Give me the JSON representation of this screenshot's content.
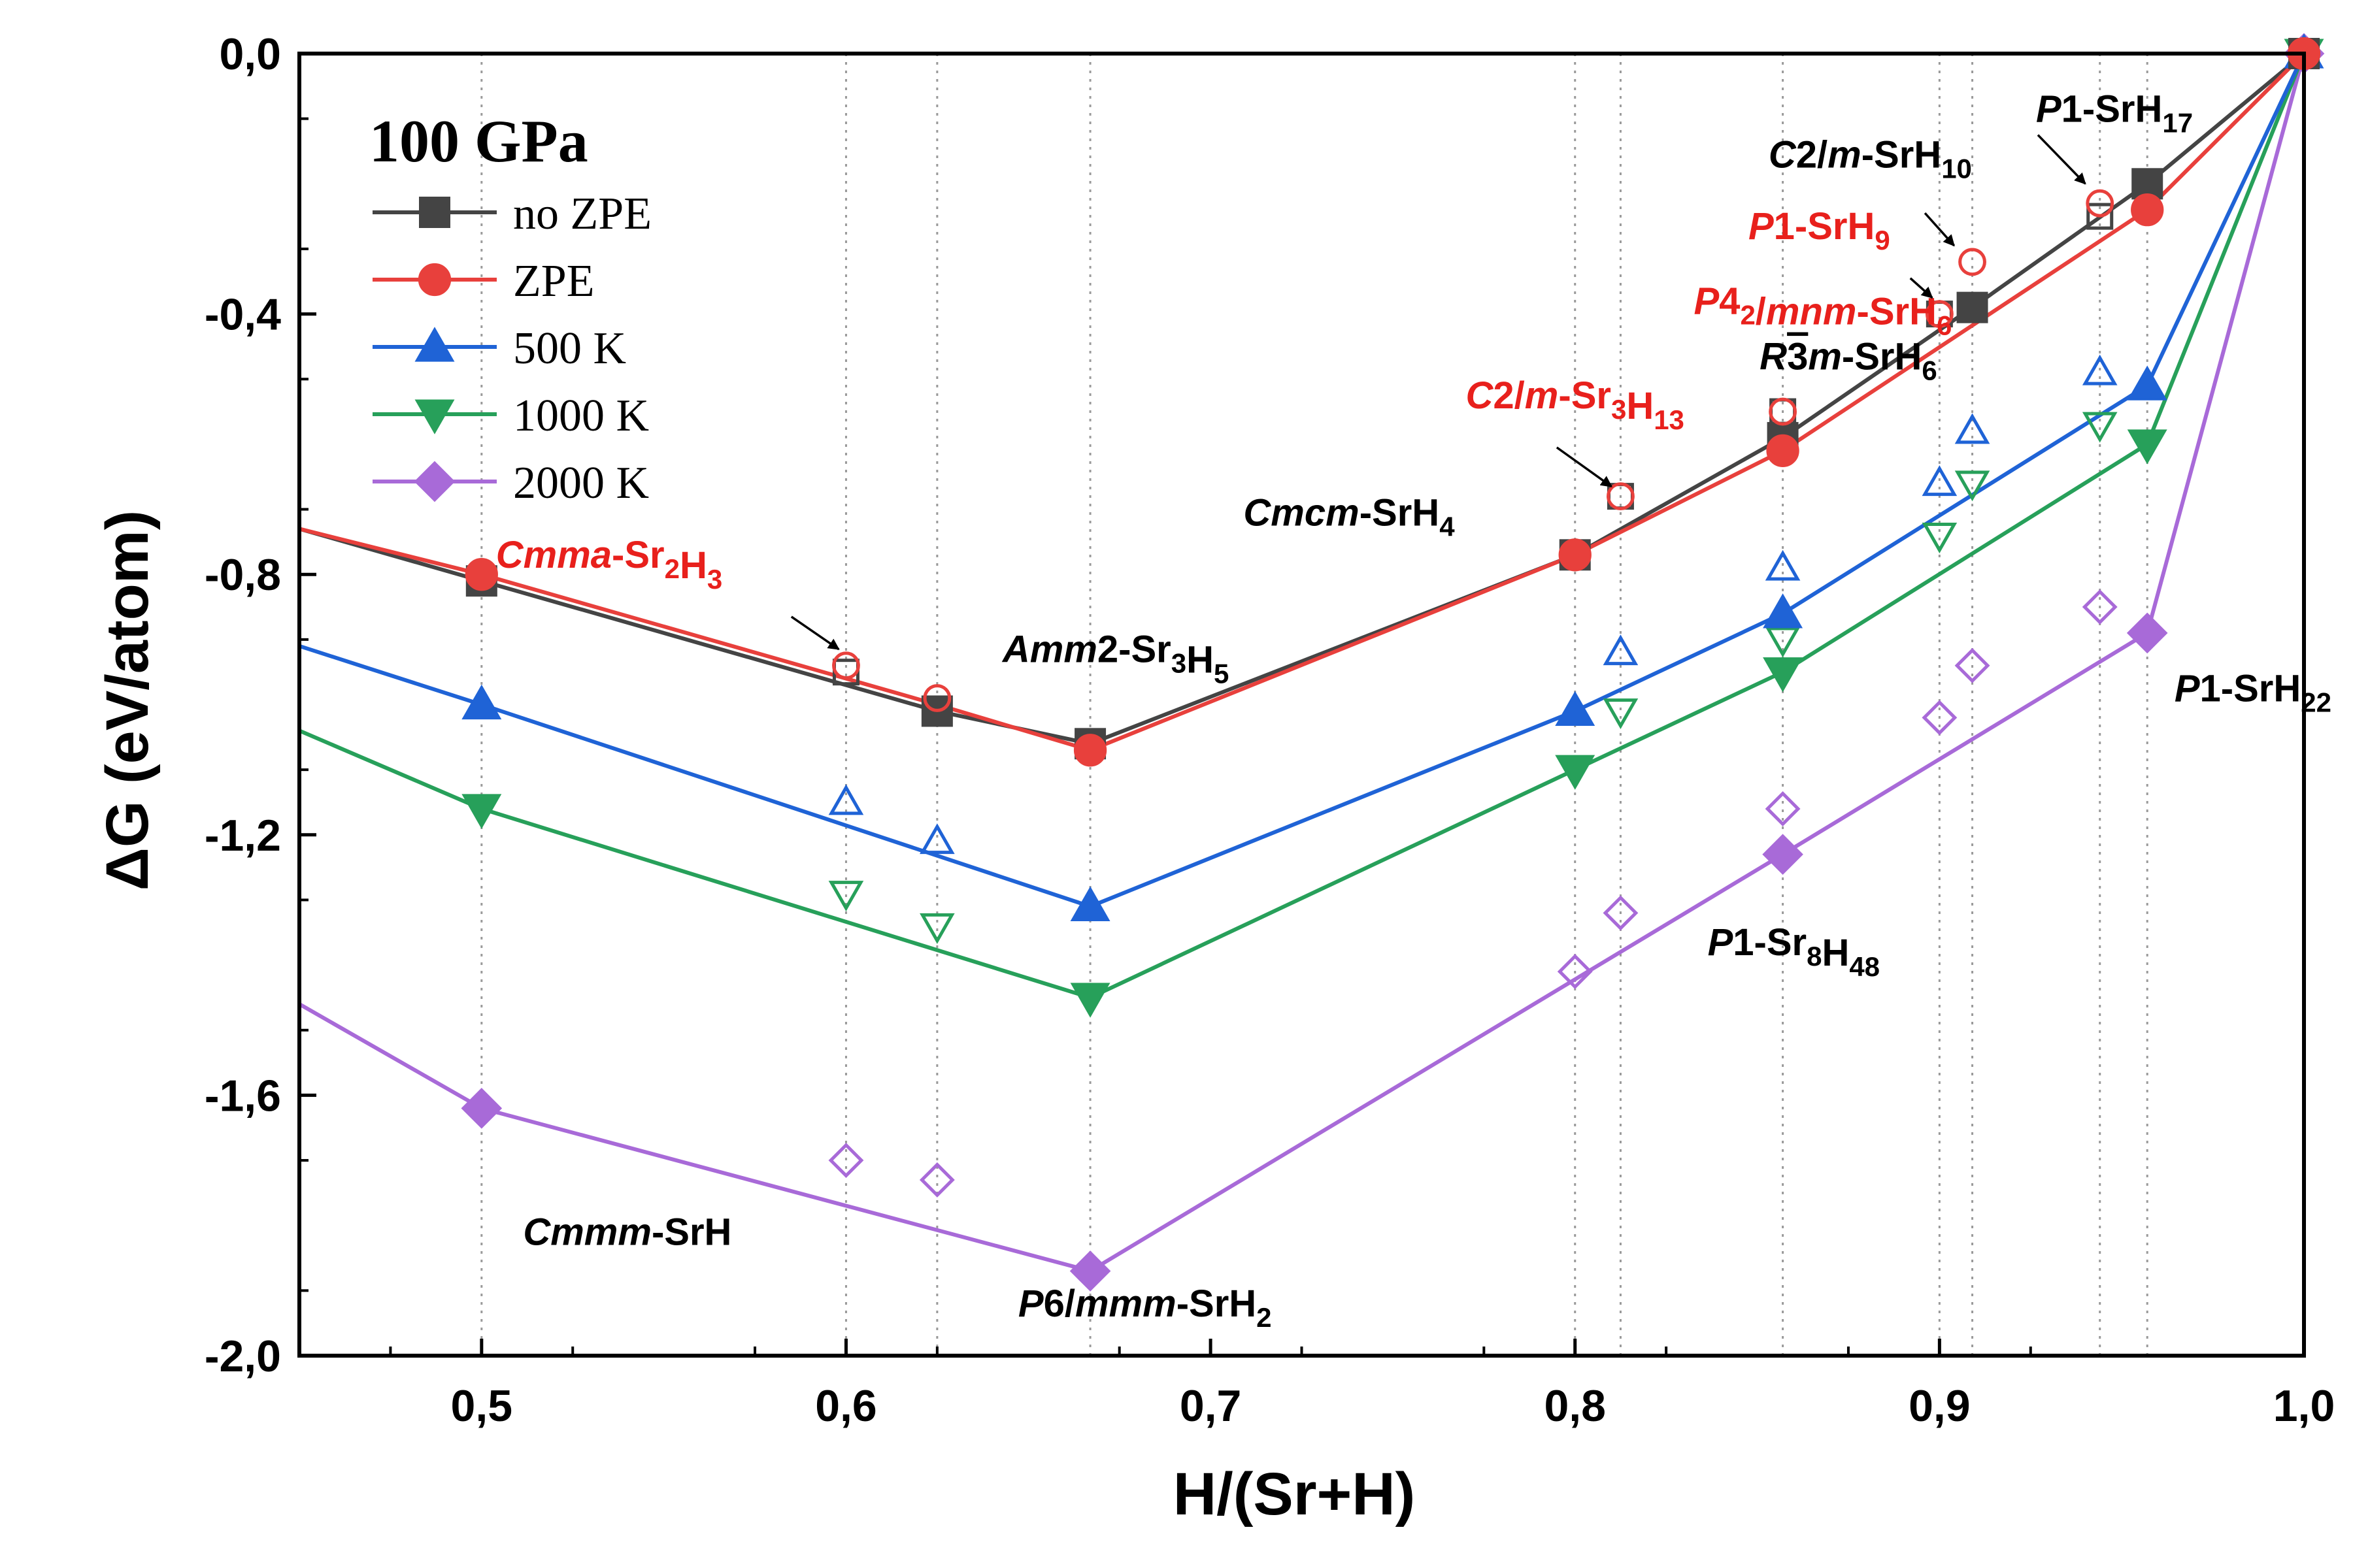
{
  "colors": {
    "no_zpe": "#444444",
    "zpe": "#e8403c",
    "k500": "#1f63d6",
    "k1000": "#27a05a",
    "k2000": "#a86ad8",
    "annotation_red": "#e8201c",
    "annotation_black": "#000000",
    "guide": "#9a9a9a"
  },
  "chart_data": {
    "type": "scatter",
    "xlabel": "H/(Sr+H)",
    "ylabel": "ΔG (eV/atom)",
    "xlim": [
      0.45,
      1.0
    ],
    "ylim": [
      -2.0,
      0.0
    ],
    "x_ticks": [
      0.5,
      0.6,
      0.7,
      0.8,
      0.9,
      1.0
    ],
    "x_tick_labels": [
      "0,5",
      "0,6",
      "0,7",
      "0,8",
      "0,9",
      "1,0"
    ],
    "y_ticks": [
      0.0,
      -0.4,
      -0.8,
      -1.2,
      -1.6,
      -2.0
    ],
    "y_tick_labels": [
      "0,0",
      "-0,4",
      "-0,8",
      "-1,2",
      "-1,6",
      "-2,0"
    ],
    "guide_lines_x": [
      0.5,
      0.6,
      0.625,
      0.667,
      0.8,
      0.8125,
      0.857,
      0.9,
      0.909,
      0.944,
      0.957
    ],
    "legend_title": "100 GPa",
    "legend_position": "top-left",
    "series": [
      {
        "name": "no ZPE",
        "color_key": "no_zpe",
        "marker": "square",
        "hull": [
          [
            0.45,
            -0.73
          ],
          [
            0.5,
            -0.81
          ],
          [
            0.625,
            -1.01
          ],
          [
            0.667,
            -1.06
          ],
          [
            0.8,
            -0.77
          ],
          [
            0.857,
            -0.59
          ],
          [
            0.909,
            -0.39
          ],
          [
            0.957,
            -0.2
          ],
          [
            1.0,
            0.0
          ]
        ],
        "on_hull": [
          [
            0.5,
            -0.81
          ],
          [
            0.625,
            -1.01
          ],
          [
            0.667,
            -1.06
          ],
          [
            0.8,
            -0.77
          ],
          [
            0.857,
            -0.59
          ],
          [
            0.909,
            -0.39
          ],
          [
            0.957,
            -0.2
          ],
          [
            1.0,
            0.0
          ]
        ],
        "off_hull": [
          [
            0.6,
            -0.95
          ],
          [
            0.8125,
            -0.68
          ],
          [
            0.857,
            -0.55
          ],
          [
            0.9,
            -0.4
          ],
          [
            0.944,
            -0.25
          ]
        ]
      },
      {
        "name": "ZPE",
        "color_key": "zpe",
        "marker": "circle",
        "hull": [
          [
            0.45,
            -0.73
          ],
          [
            0.5,
            -0.8
          ],
          [
            0.625,
            -1.0
          ],
          [
            0.667,
            -1.07
          ],
          [
            0.8,
            -0.77
          ],
          [
            0.857,
            -0.61
          ],
          [
            0.957,
            -0.24
          ],
          [
            1.0,
            0.0
          ]
        ],
        "on_hull": [
          [
            0.5,
            -0.8
          ],
          [
            0.667,
            -1.07
          ],
          [
            0.8,
            -0.77
          ],
          [
            0.857,
            -0.61
          ],
          [
            0.957,
            -0.24
          ],
          [
            1.0,
            0.0
          ]
        ],
        "off_hull": [
          [
            0.6,
            -0.94
          ],
          [
            0.625,
            -0.99
          ],
          [
            0.8125,
            -0.68
          ],
          [
            0.857,
            -0.55
          ],
          [
            0.9,
            -0.4
          ],
          [
            0.909,
            -0.32
          ],
          [
            0.944,
            -0.23
          ]
        ]
      },
      {
        "name": "500 K",
        "color_key": "k500",
        "marker": "triangle-up",
        "hull": [
          [
            0.45,
            -0.91
          ],
          [
            0.5,
            -1.0
          ],
          [
            0.667,
            -1.31
          ],
          [
            0.8,
            -1.01
          ],
          [
            0.857,
            -0.86
          ],
          [
            0.957,
            -0.51
          ],
          [
            1.0,
            0.0
          ]
        ],
        "on_hull": [
          [
            0.5,
            -1.0
          ],
          [
            0.667,
            -1.31
          ],
          [
            0.8,
            -1.01
          ],
          [
            0.857,
            -0.86
          ],
          [
            0.957,
            -0.51
          ],
          [
            1.0,
            0.0
          ]
        ],
        "off_hull": [
          [
            0.6,
            -1.15
          ],
          [
            0.625,
            -1.21
          ],
          [
            0.8125,
            -0.92
          ],
          [
            0.857,
            -0.79
          ],
          [
            0.9,
            -0.66
          ],
          [
            0.909,
            -0.58
          ],
          [
            0.944,
            -0.49
          ]
        ]
      },
      {
        "name": "1000 K",
        "color_key": "k1000",
        "marker": "triangle-down",
        "hull": [
          [
            0.45,
            -1.04
          ],
          [
            0.5,
            -1.16
          ],
          [
            0.667,
            -1.45
          ],
          [
            0.8,
            -1.1
          ],
          [
            0.857,
            -0.95
          ],
          [
            0.957,
            -0.6
          ],
          [
            1.0,
            0.0
          ]
        ],
        "on_hull": [
          [
            0.5,
            -1.16
          ],
          [
            0.667,
            -1.45
          ],
          [
            0.8,
            -1.1
          ],
          [
            0.857,
            -0.95
          ],
          [
            0.957,
            -0.6
          ],
          [
            1.0,
            0.0
          ]
        ],
        "off_hull": [
          [
            0.6,
            -1.29
          ],
          [
            0.625,
            -1.34
          ],
          [
            0.8125,
            -1.01
          ],
          [
            0.857,
            -0.9
          ],
          [
            0.9,
            -0.74
          ],
          [
            0.909,
            -0.66
          ],
          [
            0.944,
            -0.57
          ]
        ]
      },
      {
        "name": "2000 K",
        "color_key": "k2000",
        "marker": "diamond",
        "hull": [
          [
            0.45,
            -1.46
          ],
          [
            0.5,
            -1.62
          ],
          [
            0.667,
            -1.87
          ],
          [
            0.857,
            -1.23
          ],
          [
            0.957,
            -0.89
          ],
          [
            1.0,
            0.0
          ]
        ],
        "on_hull": [
          [
            0.5,
            -1.62
          ],
          [
            0.667,
            -1.87
          ],
          [
            0.857,
            -1.23
          ],
          [
            0.957,
            -0.89
          ],
          [
            1.0,
            0.0
          ]
        ],
        "off_hull": [
          [
            0.6,
            -1.7
          ],
          [
            0.625,
            -1.73
          ],
          [
            0.8,
            -1.41
          ],
          [
            0.8125,
            -1.32
          ],
          [
            0.857,
            -1.16
          ],
          [
            0.9,
            -1.02
          ],
          [
            0.909,
            -0.94
          ],
          [
            0.944,
            -0.85
          ]
        ]
      }
    ],
    "annotations": [
      {
        "id": "cmma-sr2h3",
        "color": "red",
        "parts": [
          [
            "Cmma",
            "i"
          ],
          [
            "-Sr",
            "n"
          ],
          [
            "2",
            "sub"
          ],
          [
            "H",
            "n"
          ],
          [
            "3",
            "sub"
          ]
        ],
        "data_x": 0.535,
        "data_y": -0.79,
        "arrow_from": [
          0.585,
          -0.865
        ],
        "arrow_to": [
          0.598,
          -0.915
        ]
      },
      {
        "id": "amm2-sr3h5",
        "color": "black",
        "parts": [
          [
            "Amm",
            "i"
          ],
          [
            "2-Sr",
            "n"
          ],
          [
            "3",
            "sub"
          ],
          [
            "H",
            "n"
          ],
          [
            "5",
            "sub"
          ]
        ],
        "data_x": 0.674,
        "data_y": -0.935
      },
      {
        "id": "cmcm-srh4",
        "color": "black",
        "parts": [
          [
            "Cmcm",
            "i"
          ],
          [
            "-SrH",
            "n"
          ],
          [
            "4",
            "sub"
          ]
        ],
        "data_x": 0.738,
        "data_y": -0.725
      },
      {
        "id": "c2m-sr3h13",
        "color": "red",
        "parts": [
          [
            "C",
            "i"
          ],
          [
            "2/",
            "n"
          ],
          [
            "m",
            "i"
          ],
          [
            "-Sr",
            "n"
          ],
          [
            "3",
            "sub"
          ],
          [
            "H",
            "n"
          ],
          [
            "13",
            "sub"
          ]
        ],
        "data_x": 0.8,
        "data_y": -0.545,
        "arrow_from": [
          0.795,
          -0.605
        ],
        "arrow_to": [
          0.81,
          -0.665
        ]
      },
      {
        "id": "r3m-srh6",
        "color": "black",
        "parts": [
          [
            "R",
            "i"
          ],
          [
            "3",
            "bar"
          ],
          [
            "m",
            "i"
          ],
          [
            "-SrH",
            "n"
          ],
          [
            "6",
            "sub"
          ]
        ],
        "data_x": 0.875,
        "data_y": -0.485
      },
      {
        "id": "p42mnm-srh6",
        "color": "red",
        "parts": [
          [
            "P",
            "i"
          ],
          [
            "4",
            "n"
          ],
          [
            "2",
            "sub"
          ],
          [
            "/",
            "n"
          ],
          [
            "mnm",
            "i"
          ],
          [
            "-SrH",
            "n"
          ],
          [
            "6",
            "sub"
          ]
        ],
        "data_x": 0.868,
        "data_y": -0.4
      },
      {
        "id": "p1-srh9",
        "color": "red",
        "parts": [
          [
            "P",
            "i"
          ],
          [
            "1-SrH",
            "n"
          ],
          [
            "9",
            "sub"
          ]
        ],
        "data_x": 0.867,
        "data_y": -0.285,
        "arrow_from": [
          0.892,
          -0.345
        ],
        "arrow_to": [
          0.898,
          -0.375
        ]
      },
      {
        "id": "c2m-srh10",
        "color": "black",
        "parts": [
          [
            "C",
            "i"
          ],
          [
            "2/",
            "n"
          ],
          [
            "m",
            "i"
          ],
          [
            "-SrH",
            "n"
          ],
          [
            "10",
            "sub"
          ]
        ],
        "data_x": 0.881,
        "data_y": -0.175,
        "arrow_from": [
          0.896,
          -0.245
        ],
        "arrow_to": [
          0.904,
          -0.295
        ]
      },
      {
        "id": "p1-srh17",
        "color": "black",
        "parts": [
          [
            "P",
            "i"
          ],
          [
            "1-SrH",
            "n"
          ],
          [
            "17",
            "sub"
          ]
        ],
        "data_x": 0.948,
        "data_y": -0.105,
        "arrow_from": [
          0.927,
          -0.125
        ],
        "arrow_to": [
          0.94,
          -0.2
        ]
      },
      {
        "id": "p1-srh22",
        "color": "black",
        "parts": [
          [
            "P",
            "i"
          ],
          [
            "1-SrH",
            "n"
          ],
          [
            "22",
            "sub"
          ]
        ],
        "data_x": 0.986,
        "data_y": -0.995
      },
      {
        "id": "p1-sr8h48",
        "color": "black",
        "parts": [
          [
            "P",
            "i"
          ],
          [
            "1-Sr",
            "n"
          ],
          [
            "8",
            "sub"
          ],
          [
            "H",
            "n"
          ],
          [
            "48",
            "sub"
          ]
        ],
        "data_x": 0.86,
        "data_y": -1.385
      },
      {
        "id": "cmmm-srh",
        "color": "black",
        "parts": [
          [
            "Cmmm",
            "i"
          ],
          [
            "-SrH",
            "n"
          ]
        ],
        "data_x": 0.54,
        "data_y": -1.83
      },
      {
        "id": "p6mmm-srh2",
        "color": "black",
        "parts": [
          [
            "P",
            "i"
          ],
          [
            "6/",
            "n"
          ],
          [
            "mmm",
            "i"
          ],
          [
            "-SrH",
            "n"
          ],
          [
            "2",
            "sub"
          ]
        ],
        "data_x": 0.682,
        "data_y": -1.94
      }
    ]
  }
}
